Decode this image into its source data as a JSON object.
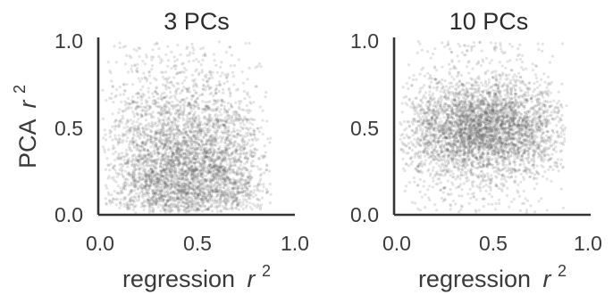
{
  "chart_data": [
    {
      "type": "scatter",
      "title": "3 PCs",
      "xlabel": "regression",
      "ylabel": "PCA",
      "label_exponent": "2",
      "label_variable": "r",
      "xlim": [
        0.0,
        1.0
      ],
      "ylim": [
        0.0,
        1.0
      ],
      "xticks": [
        "0.0",
        "0.5",
        "1.0"
      ],
      "yticks": [
        "0.0",
        "0.5",
        "1.0"
      ],
      "point_color": "#555555",
      "point_count": 4000,
      "x_range": [
        0.0,
        0.9
      ],
      "y_range": [
        0.0,
        1.0
      ],
      "y_concentration": "low",
      "grid": false
    },
    {
      "type": "scatter",
      "title": "10 PCs",
      "xlabel": "regression",
      "ylabel": "",
      "label_exponent": "2",
      "label_variable": "r",
      "xlim": [
        0.0,
        1.0
      ],
      "ylim": [
        0.0,
        1.0
      ],
      "xticks": [
        "0.0",
        "0.5",
        "1.0"
      ],
      "yticks": [
        "0.0",
        "0.5",
        "1.0"
      ],
      "point_color": "#555555",
      "point_count": 4000,
      "x_range": [
        0.0,
        0.9
      ],
      "y_range": [
        0.0,
        1.0
      ],
      "y_concentration": "mid",
      "grid": false
    }
  ]
}
